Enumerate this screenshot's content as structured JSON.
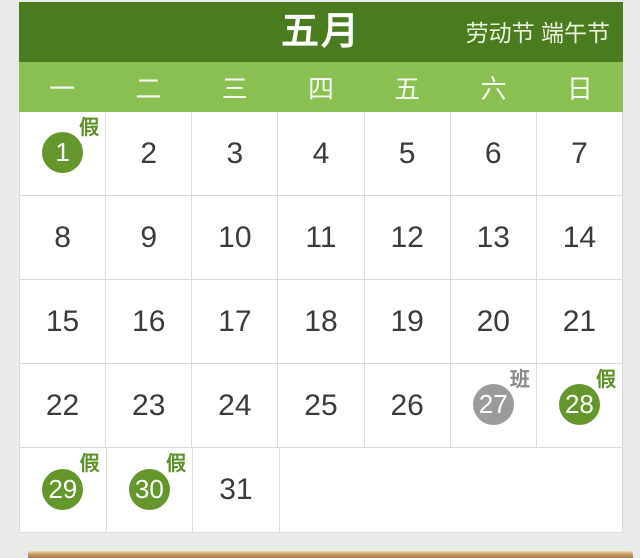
{
  "calendar": {
    "month_title": "五月",
    "festivals": "劳动节 端午节",
    "weekdays": [
      "一",
      "二",
      "三",
      "四",
      "五",
      "六",
      "日"
    ],
    "weeks_count": 5,
    "days": [
      {
        "num": "1",
        "marker": "假",
        "kind": "holiday"
      },
      {
        "num": "2"
      },
      {
        "num": "3"
      },
      {
        "num": "4"
      },
      {
        "num": "5"
      },
      {
        "num": "6"
      },
      {
        "num": "7"
      },
      {
        "num": "8"
      },
      {
        "num": "9"
      },
      {
        "num": "10"
      },
      {
        "num": "11"
      },
      {
        "num": "12"
      },
      {
        "num": "13"
      },
      {
        "num": "14"
      },
      {
        "num": "15"
      },
      {
        "num": "16"
      },
      {
        "num": "17"
      },
      {
        "num": "18"
      },
      {
        "num": "19"
      },
      {
        "num": "20"
      },
      {
        "num": "21"
      },
      {
        "num": "22"
      },
      {
        "num": "23"
      },
      {
        "num": "24"
      },
      {
        "num": "25"
      },
      {
        "num": "26"
      },
      {
        "num": "27",
        "marker": "班",
        "kind": "work"
      },
      {
        "num": "28",
        "marker": "假",
        "kind": "holiday"
      },
      {
        "num": "29",
        "marker": "假",
        "kind": "holiday"
      },
      {
        "num": "30",
        "marker": "假",
        "kind": "holiday"
      },
      {
        "num": "31"
      }
    ]
  },
  "colors": {
    "header_bg": "#4a7b1e",
    "weekday_bg": "#8abf51",
    "holiday_circle": "#64962b",
    "work_circle": "#9b9b9b",
    "holiday_label": "#5d9126",
    "work_label": "#898989",
    "grid_border": "#d9dcdf",
    "day_text": "#3b3b3b",
    "page_bg": "#e9ebe9",
    "next_card_edge": "#cd9c64"
  }
}
